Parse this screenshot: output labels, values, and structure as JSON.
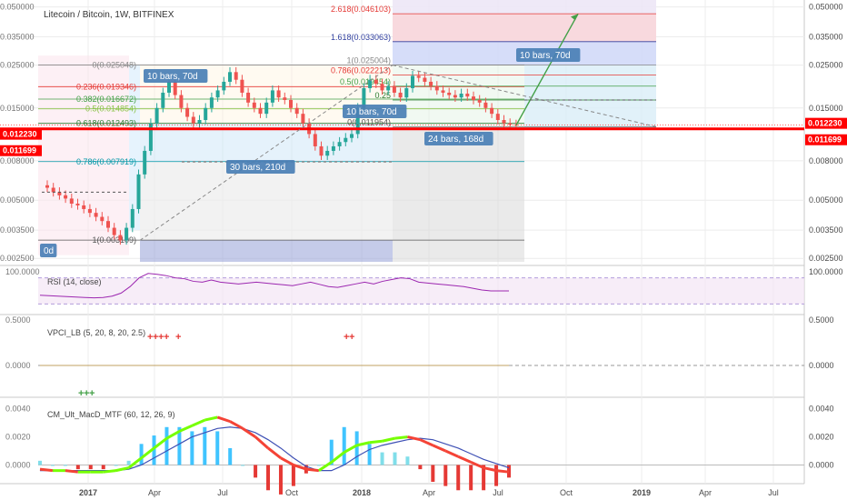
{
  "title": "Litecoin / Bitcoin, 1W, BITFINEX",
  "colors": {
    "up": "#26a69a",
    "down": "#ef5350",
    "support": "#ff0000",
    "rsi": "#9c27b0",
    "rsi_band": "#f3e5f5",
    "macd_line": "#3f51b5",
    "grid": "#ececec",
    "text": "#4a4a4a",
    "price_tag_bg": "#ff0000"
  },
  "chart_data": [
    {
      "type": "candlestick",
      "name": "main",
      "scale": "log",
      "ylim": [
        0.0024,
        0.052
      ],
      "x_ticks": [
        "2017",
        "Apr",
        "Jul",
        "Oct",
        "2018",
        "Apr",
        "Jul",
        "Oct",
        "2019",
        "Apr",
        "Jul"
      ],
      "y_ticks": [
        "0.050000",
        "0.035000",
        "0.025000",
        "0.015000",
        "0.008000",
        "0.005000",
        "0.003500",
        "0.002500"
      ],
      "last_price": "0.012230",
      "support_price": "0.011699",
      "support_left_label": "0.011699",
      "last_left_label": "0.012230",
      "fib_left": [
        {
          "label": "0(0.025048)",
          "value": 0.025048
        },
        {
          "label": "0.236(0.019346)",
          "value": 0.019346
        },
        {
          "label": "0.382(0.016672)",
          "value": 0.016672
        },
        {
          "label": "0.5(0.014854)",
          "value": 0.014854
        },
        {
          "label": "0.618(0.012493)",
          "value": 0.012493
        },
        {
          "label": "0.786(0.007919)",
          "value": 0.007919
        },
        {
          "label": "1(0.003109)",
          "value": 0.003109
        }
      ],
      "fib_right": [
        {
          "label": "2.618(0.046103)",
          "value": 0.046103
        },
        {
          "label": "1.618(0.033063)",
          "value": 0.033063
        },
        {
          "label": "1(0.025004)",
          "value": 0.025004
        },
        {
          "label": "0.786(0.022213)",
          "value": 0.022213
        },
        {
          "label": "0.5(0.019454)",
          "value": 0.019454
        },
        {
          "label": "0.25",
          "value": 0.0165
        },
        {
          "label": "0(0.011954)",
          "value": 0.011954
        }
      ],
      "annotations": [
        "10 bars, 70d",
        "10 bars, 70d",
        "30 bars, 210d",
        "10 bars, 70d",
        "24 bars, 168d",
        "0d"
      ],
      "closes": [
        0.0058,
        0.0055,
        0.0053,
        0.0051,
        0.0048,
        0.0047,
        0.0045,
        0.0043,
        0.0041,
        0.0039,
        0.0036,
        0.0033,
        0.0031,
        0.0036,
        0.0045,
        0.0068,
        0.009,
        0.0125,
        0.015,
        0.018,
        0.0205,
        0.0175,
        0.015,
        0.0135,
        0.0125,
        0.013,
        0.015,
        0.017,
        0.0185,
        0.0205,
        0.023,
        0.021,
        0.018,
        0.016,
        0.015,
        0.014,
        0.016,
        0.0185,
        0.017,
        0.0165,
        0.015,
        0.014,
        0.0125,
        0.011,
        0.0095,
        0.0085,
        0.009,
        0.0095,
        0.01,
        0.0105,
        0.011,
        0.015,
        0.019,
        0.021,
        0.02,
        0.0185,
        0.0195,
        0.018,
        0.017,
        0.019,
        0.022,
        0.0215,
        0.0205,
        0.0195,
        0.0185,
        0.018,
        0.0175,
        0.017,
        0.0178,
        0.0172,
        0.0165,
        0.016,
        0.015,
        0.014,
        0.013,
        0.0125,
        0.0123,
        0.0122
      ]
    },
    {
      "type": "line",
      "name": "RSI",
      "label": "RSI (14, close)",
      "ylim": [
        0,
        100
      ],
      "y_ticks": [
        "100.0000"
      ],
      "values": [
        40,
        39,
        38,
        37,
        36,
        35,
        34,
        35,
        38,
        45,
        60,
        80,
        90,
        88,
        85,
        80,
        78,
        72,
        70,
        75,
        70,
        68,
        66,
        68,
        70,
        68,
        66,
        64,
        62,
        66,
        70,
        65,
        60,
        58,
        62,
        66,
        70,
        66,
        72,
        76,
        80,
        78,
        70,
        68,
        66,
        64,
        62,
        60,
        56,
        52,
        50,
        50,
        50
      ]
    },
    {
      "type": "line",
      "name": "VPCI",
      "label": "VPCI_LB (5, 20, 8, 20, 2.5)",
      "y_ticks": [
        "0.5000",
        "0.0000"
      ],
      "values": [
        0,
        0,
        0,
        0,
        0,
        0,
        0,
        0,
        0,
        0,
        0,
        0,
        0,
        0,
        0,
        0,
        0,
        0,
        0,
        0
      ]
    },
    {
      "type": "bar+line",
      "name": "MACD",
      "label": "CM_Ult_MacD_MTF (60, 12, 26, 9)",
      "ylim": [
        -0.0012,
        0.0045
      ],
      "y_ticks": [
        "0.0040",
        "0.0020",
        "0.0000"
      ],
      "macd": [
        -0.0003,
        -0.0004,
        -0.0004,
        -0.0005,
        -0.0005,
        -0.0005,
        -0.0004,
        -0.0002,
        0.0005,
        0.0012,
        0.0019,
        0.0024,
        0.0028,
        0.0032,
        0.0034,
        0.0031,
        0.0026,
        0.002,
        0.0012,
        0.0005,
        0.0,
        -0.0003,
        -0.0004,
        0.0002,
        0.0009,
        0.0014,
        0.0016,
        0.0017,
        0.0019,
        0.002,
        0.0018,
        0.0014,
        0.001,
        0.0006,
        0.0002,
        -0.0002,
        -0.0004,
        -0.0005
      ],
      "signal": [
        -0.0004,
        -0.0004,
        -0.0004,
        -0.0004,
        -0.0004,
        -0.0004,
        -0.0004,
        -0.0003,
        0.0,
        0.0005,
        0.001,
        0.0015,
        0.002,
        0.0023,
        0.0026,
        0.0027,
        0.0026,
        0.0023,
        0.0018,
        0.0012,
        0.0005,
        -0.0001,
        -0.0004,
        -0.0004,
        0.0,
        0.0006,
        0.0011,
        0.0014,
        0.0016,
        0.0018,
        0.0019,
        0.0018,
        0.0015,
        0.0012,
        0.0008,
        0.0004,
        0.0001,
        -0.0002
      ]
    }
  ]
}
